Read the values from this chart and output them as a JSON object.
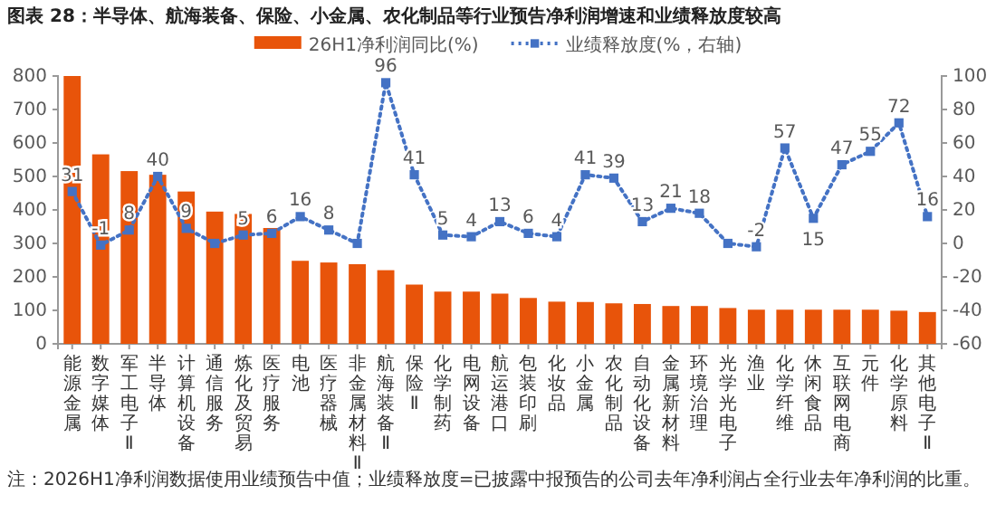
{
  "chart_data": {
    "type": "bar",
    "title": "图表 28：半导体、航海装备、保险、小金属、农化制品等行业预告净利润增速和业绩释放度较高",
    "categories": [
      "能源金属",
      "数字媒体",
      "军工电子Ⅱ",
      "半导体",
      "计算机设备",
      "通信服务",
      "炼化及贸易",
      "医疗服务",
      "电池",
      "医疗器械",
      "非金属材料Ⅱ",
      "航海装备Ⅱ",
      "保险Ⅱ",
      "化学制药",
      "电网设备",
      "航运港口",
      "包装印刷",
      "化妆品",
      "小金属",
      "农化制品",
      "自动化设备",
      "金属新材料",
      "环境治理",
      "光学光电子",
      "渔业",
      "化学纤维",
      "休闲食品",
      "互联网电商",
      "元件",
      "化学原料",
      "其他电子Ⅱ"
    ],
    "series": [
      {
        "name": "26H1净利润同比(%)",
        "color": "#e8540a",
        "values": [
          800,
          566,
          516,
          505,
          455,
          395,
          388,
          346,
          248,
          243,
          238,
          220,
          177,
          156,
          156,
          150,
          137,
          126,
          125,
          121,
          119,
          113,
          113,
          107,
          102,
          102,
          102,
          102,
          102,
          99,
          95
        ]
      },
      {
        "name": "业绩释放度(%，右轴)",
        "type": "line",
        "axis": "y2",
        "color": "#4472c4",
        "values": [
          31,
          -1,
          8,
          40,
          9,
          0,
          5,
          6,
          16,
          8,
          0,
          96,
          41,
          5,
          4,
          13,
          6,
          4,
          41,
          39,
          13,
          21,
          18,
          0,
          -2,
          57,
          15,
          47,
          55,
          72,
          16
        ],
        "value_labels": [
          "31",
          "-1",
          "8",
          "40",
          "9",
          null,
          "5",
          "6",
          "16",
          "8",
          null,
          "96",
          "41",
          "5",
          "4",
          "13",
          "6",
          "4",
          "41",
          "39",
          "13",
          "21",
          "18",
          null,
          "-2",
          "57",
          "15",
          "47",
          "55",
          "72",
          "16"
        ]
      }
    ],
    "ylim": [
      0,
      800
    ],
    "yticks": [
      0,
      100,
      200,
      300,
      400,
      500,
      600,
      700,
      800
    ],
    "y2lim": [
      -60,
      100
    ],
    "y2ticks": [
      -60,
      -40,
      -20,
      0,
      20,
      40,
      60,
      80,
      100
    ],
    "marker": "square",
    "line_style": "dotted",
    "legend": "top",
    "grid": false,
    "annotations": [
      "注：2026H1净利润数据使用业绩预告中值；业绩释放度=已披露中报预告的公司去年净利润占全行业去年净利润的比重。"
    ]
  }
}
